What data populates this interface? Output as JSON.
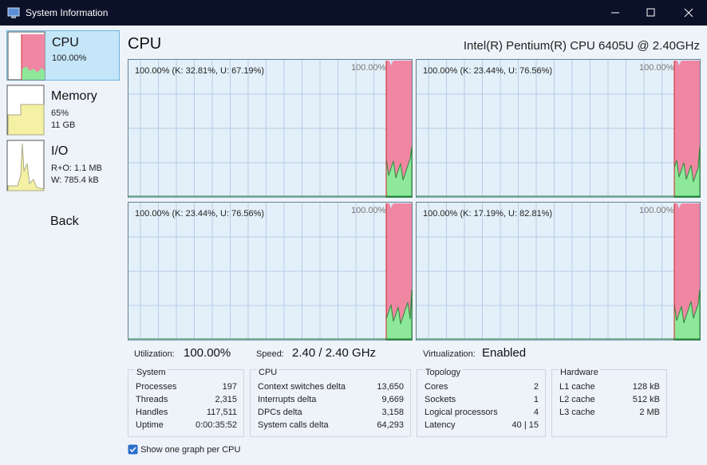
{
  "window": {
    "title": "System Information"
  },
  "sidebar": {
    "items": [
      {
        "label": "CPU",
        "lines": [
          "100.00%"
        ]
      },
      {
        "label": "Memory",
        "lines": [
          "65%",
          "11 GB"
        ]
      },
      {
        "label": "I/O",
        "lines": [
          "R+O: 1.1 MB",
          "W: 785.4 kB"
        ]
      }
    ],
    "back": "Back"
  },
  "header": {
    "title": "CPU",
    "cpu_name": "Intel(R) Pentium(R) CPU 6405U @ 2.40GHz"
  },
  "graphs": [
    {
      "label": "100.00% (K: 32.81%, U: 67.19%)",
      "max": "100.00%"
    },
    {
      "label": "100.00% (K: 23.44%, U: 76.56%)",
      "max": "100.00%"
    },
    {
      "label": "100.00% (K: 23.44%, U: 76.56%)",
      "max": "100.00%"
    },
    {
      "label": "100.00% (K: 17.19%, U: 82.81%)",
      "max": "100.00%"
    }
  ],
  "stats": [
    {
      "label": "Utilization:",
      "value": "100.00%"
    },
    {
      "label": "Speed:",
      "value": "2.40 / 2.40 GHz"
    },
    {
      "label": "Virtualization:",
      "value": "Enabled"
    }
  ],
  "groups": [
    {
      "title": "System",
      "rows": [
        [
          "Processes",
          "197"
        ],
        [
          "Threads",
          "2,315"
        ],
        [
          "Handles",
          "117,511"
        ],
        [
          "Uptime",
          "0:00:35:52"
        ]
      ]
    },
    {
      "title": "CPU",
      "rows": [
        [
          "Context switches delta",
          "13,650"
        ],
        [
          "Interrupts delta",
          "9,669"
        ],
        [
          "DPCs delta",
          "3,158"
        ],
        [
          "System calls delta",
          "64,293"
        ]
      ]
    },
    {
      "title": "Topology",
      "rows": [
        [
          "Cores",
          "2"
        ],
        [
          "Sockets",
          "1"
        ],
        [
          "Logical processors",
          "4"
        ],
        [
          "Latency",
          "40 | 15"
        ]
      ]
    },
    {
      "title": "Hardware",
      "rows": [
        [
          "L1 cache",
          "128 kB"
        ],
        [
          "L2 cache",
          "512 kB"
        ],
        [
          "L3 cache",
          "2 MB"
        ]
      ]
    }
  ],
  "checkbox": {
    "label": "Show one graph per CPU"
  }
}
